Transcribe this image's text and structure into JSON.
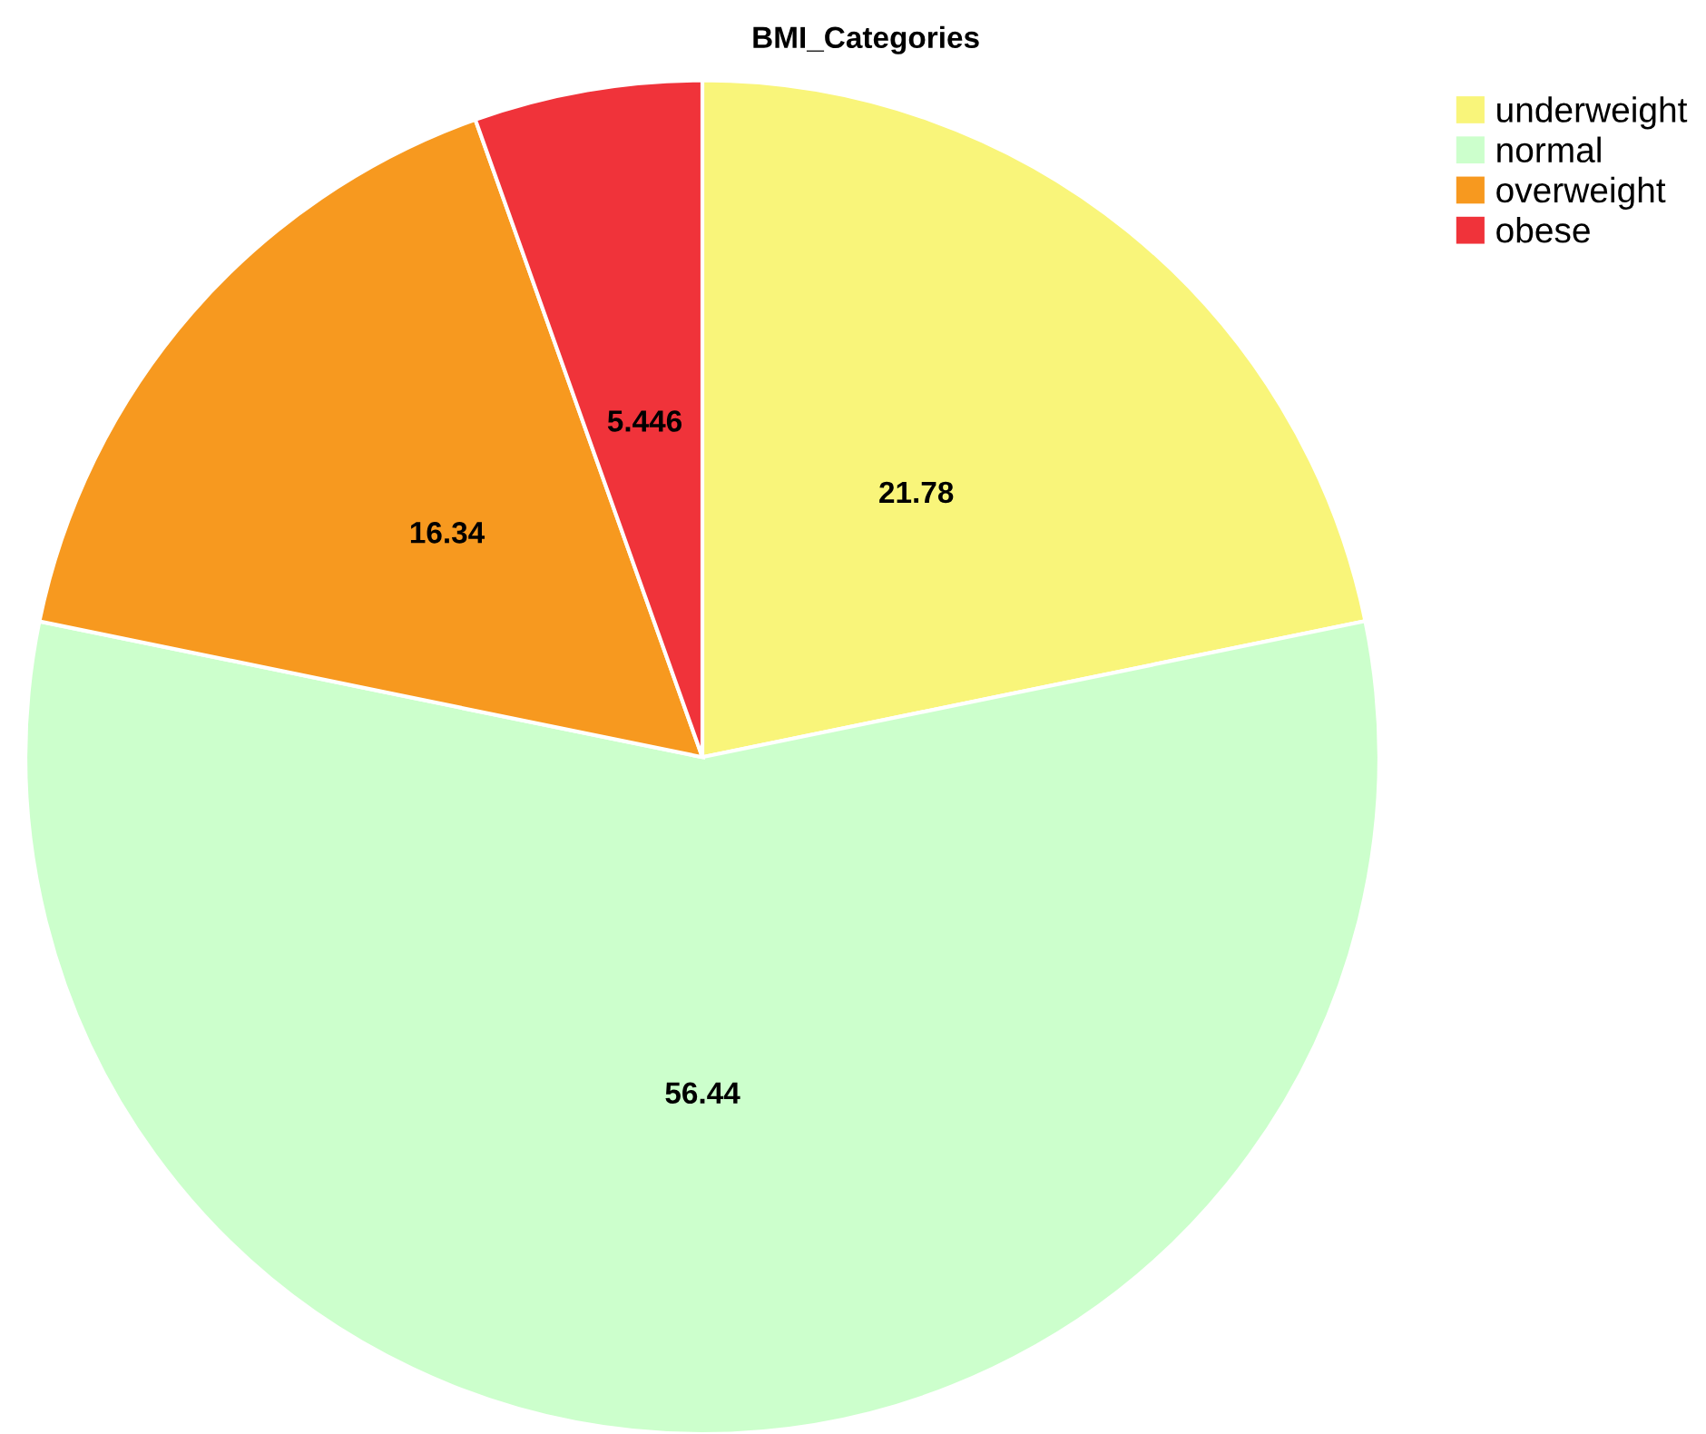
{
  "chart_data": {
    "type": "pie",
    "title": "BMI_Categories",
    "categories": [
      "underweight",
      "normal",
      "overweight",
      "obese"
    ],
    "values": [
      21.78,
      56.44,
      16.34,
      5.446
    ],
    "colors": [
      "#f9f57a",
      "#ccffcc",
      "#f7991f",
      "#f0333a"
    ],
    "data_labels": true,
    "legend": "top right"
  }
}
